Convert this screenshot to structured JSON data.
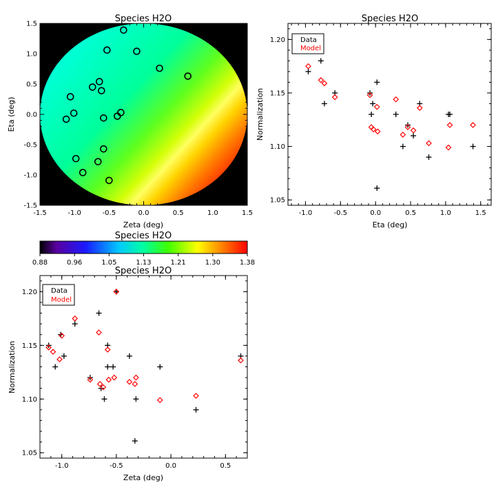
{
  "chart_data": [
    {
      "type": "heatmap",
      "title": "Species H2O",
      "xlabel": "Zeta (deg)",
      "ylabel": "Eta (deg)",
      "xlim": [
        -1.5,
        1.5
      ],
      "ylim": [
        -1.5,
        1.5
      ],
      "xticks": [
        "-1.5",
        "-1.0",
        "-0.5",
        "0.0",
        "0.5",
        "1.0",
        "1.5"
      ],
      "yticks": [
        "-1.5",
        "-1.0",
        "-0.5",
        "0.0",
        "0.5",
        "1.0",
        "1.5"
      ],
      "background_color": "#000000",
      "field_radius": 1.5,
      "markers": [
        {
          "x": -0.29,
          "y": 1.39
        },
        {
          "x": -0.53,
          "y": 1.06
        },
        {
          "x": -0.1,
          "y": 1.04
        },
        {
          "x": 0.23,
          "y": 0.76
        },
        {
          "x": 0.64,
          "y": 0.63
        },
        {
          "x": -0.64,
          "y": 0.54
        },
        {
          "x": -0.74,
          "y": 0.45
        },
        {
          "x": -0.61,
          "y": 0.39
        },
        {
          "x": -1.06,
          "y": 0.29
        },
        {
          "x": -1.01,
          "y": 0.02
        },
        {
          "x": -0.33,
          "y": 0.03
        },
        {
          "x": -0.38,
          "y": -0.03
        },
        {
          "x": -0.58,
          "y": -0.06
        },
        {
          "x": -1.12,
          "y": -0.08
        },
        {
          "x": -0.58,
          "y": -0.57
        },
        {
          "x": -0.98,
          "y": -0.73
        },
        {
          "x": -0.66,
          "y": -0.78
        },
        {
          "x": -0.88,
          "y": -0.96
        },
        {
          "x": -0.5,
          "y": -1.09
        }
      ]
    },
    {
      "type": "heatmap",
      "title": "Species H2O",
      "colorbar": {
        "ticks": [
          "0.88",
          "0.96",
          "1.05",
          "1.13",
          "1.21",
          "1.30",
          "1.38"
        ],
        "min": 0.88,
        "max": 1.38
      }
    },
    {
      "type": "scatter",
      "title": "Species H2O",
      "xlabel": "Eta (deg)",
      "ylabel": "Normalization",
      "xlim": [
        -1.25,
        1.65
      ],
      "ylim": [
        1.045,
        1.215
      ],
      "xticks": [
        "-1.0",
        "-0.5",
        "0.0",
        "0.5",
        "1.0",
        "1.5"
      ],
      "yticks": [
        "1.05",
        "1.10",
        "1.15",
        "1.20"
      ],
      "legend_position": "top-left",
      "series": [
        {
          "name": "Data",
          "marker": "plus",
          "color": "#000000",
          "points": [
            [
              -1.05,
              1.2
            ],
            [
              -0.96,
              1.17
            ],
            [
              -0.78,
              1.18
            ],
            [
              -0.73,
              1.14
            ],
            [
              -0.58,
              1.15
            ],
            [
              -0.08,
              1.15
            ],
            [
              -0.06,
              1.13
            ],
            [
              -0.04,
              1.14
            ],
            [
              0.02,
              1.16
            ],
            [
              0.02,
              1.061
            ],
            [
              0.29,
              1.13
            ],
            [
              0.39,
              1.1
            ],
            [
              0.46,
              1.12
            ],
            [
              0.54,
              1.11
            ],
            [
              0.63,
              1.14
            ],
            [
              0.76,
              1.09
            ],
            [
              1.04,
              1.13
            ],
            [
              1.06,
              1.13
            ],
            [
              1.39,
              1.1
            ]
          ]
        },
        {
          "name": "Model",
          "marker": "diamond",
          "color": "#ff0000",
          "points": [
            [
              -1.06,
              1.2
            ],
            [
              -0.96,
              1.175
            ],
            [
              -0.78,
              1.162
            ],
            [
              -0.73,
              1.159
            ],
            [
              -0.58,
              1.146
            ],
            [
              -0.08,
              1.148
            ],
            [
              -0.06,
              1.118
            ],
            [
              -0.03,
              1.116
            ],
            [
              0.02,
              1.137
            ],
            [
              0.03,
              1.114
            ],
            [
              0.29,
              1.144
            ],
            [
              0.39,
              1.111
            ],
            [
              0.46,
              1.118
            ],
            [
              0.54,
              1.115
            ],
            [
              0.63,
              1.136
            ],
            [
              0.76,
              1.103
            ],
            [
              1.04,
              1.099
            ],
            [
              1.06,
              1.12
            ],
            [
              1.39,
              1.12
            ]
          ]
        }
      ]
    },
    {
      "type": "scatter",
      "title": "Species H2O",
      "xlabel": "Zeta (deg)",
      "ylabel": "Normalization",
      "xlim": [
        -1.2,
        0.7
      ],
      "ylim": [
        1.045,
        1.215
      ],
      "xticks": [
        "-1.0",
        "-0.5",
        "0.0",
        "0.5"
      ],
      "yticks": [
        "1.05",
        "1.10",
        "1.15",
        "1.20"
      ],
      "legend_position": "top-left",
      "series": [
        {
          "name": "Data",
          "marker": "plus",
          "color": "#000000",
          "points": [
            [
              -1.12,
              1.15
            ],
            [
              -1.06,
              1.13
            ],
            [
              -1.01,
              1.16
            ],
            [
              -0.98,
              1.14
            ],
            [
              -0.88,
              1.17
            ],
            [
              -0.74,
              1.12
            ],
            [
              -0.66,
              1.18
            ],
            [
              -0.64,
              1.11
            ],
            [
              -0.61,
              1.1
            ],
            [
              -0.58,
              1.15
            ],
            [
              -0.58,
              1.13
            ],
            [
              -0.53,
              1.13
            ],
            [
              -0.5,
              1.2
            ],
            [
              -0.38,
              1.14
            ],
            [
              -0.33,
              1.061
            ],
            [
              -0.32,
              1.1
            ],
            [
              -0.1,
              1.13
            ],
            [
              0.23,
              1.09
            ],
            [
              0.64,
              1.14
            ]
          ]
        },
        {
          "name": "Model",
          "marker": "diamond",
          "color": "#ff0000",
          "points": [
            [
              -1.12,
              1.148
            ],
            [
              -1.08,
              1.144
            ],
            [
              -1.02,
              1.137
            ],
            [
              -1.0,
              1.159
            ],
            [
              -0.88,
              1.175
            ],
            [
              -0.74,
              1.118
            ],
            [
              -0.66,
              1.162
            ],
            [
              -0.65,
              1.114
            ],
            [
              -0.62,
              1.111
            ],
            [
              -0.58,
              1.146
            ],
            [
              -0.57,
              1.118
            ],
            [
              -0.52,
              1.12
            ],
            [
              -0.5,
              1.2
            ],
            [
              -0.38,
              1.116
            ],
            [
              -0.33,
              1.114
            ],
            [
              -0.32,
              1.12
            ],
            [
              -0.1,
              1.099
            ],
            [
              0.23,
              1.103
            ],
            [
              0.64,
              1.136
            ]
          ]
        }
      ]
    }
  ]
}
